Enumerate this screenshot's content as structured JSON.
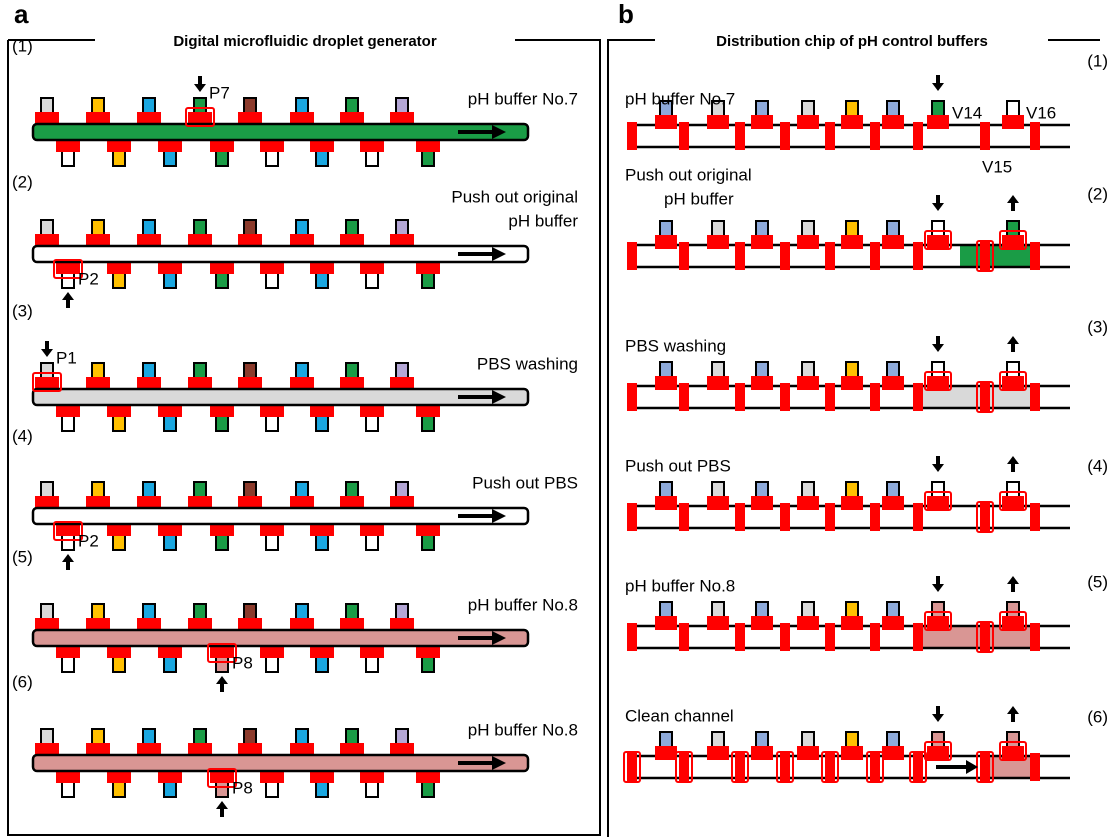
{
  "panels": [
    {
      "letter": "a",
      "title": "Digital microfluidic droplet  generator",
      "steps": [
        {
          "number": "(1)",
          "text": [
            "pH buffer No.7"
          ],
          "port": "P7"
        },
        {
          "number": "(2)",
          "text": [
            "Push out original",
            "pH buffer"
          ],
          "port": "P2"
        },
        {
          "number": "(3)",
          "text": [
            "PBS washing"
          ],
          "port": "P1"
        },
        {
          "number": "(4)",
          "text": [
            "Push out PBS"
          ],
          "port": "P2"
        },
        {
          "number": "(5)",
          "text": [
            "pH buffer No.8"
          ],
          "port": "P8"
        },
        {
          "number": "(6)",
          "text": [
            "pH buffer No.8"
          ],
          "port": "P8"
        }
      ]
    },
    {
      "letter": "b",
      "title": "Distribution chip of pH control buffers",
      "valves": [
        "V14",
        "V16",
        "V15"
      ],
      "steps": [
        {
          "number": "(1)",
          "text": [
            "pH buffer No.7"
          ]
        },
        {
          "number": "(2)",
          "text": [
            "Push out original",
            "pH buffer"
          ]
        },
        {
          "number": "(3)",
          "text": [
            "PBS washing"
          ]
        },
        {
          "number": "(4)",
          "text": [
            "Push out PBS"
          ]
        },
        {
          "number": "(5)",
          "text": [
            "pH buffer No.8"
          ]
        },
        {
          "number": "(6)",
          "text": [
            "Clean channel"
          ]
        }
      ]
    }
  ]
}
